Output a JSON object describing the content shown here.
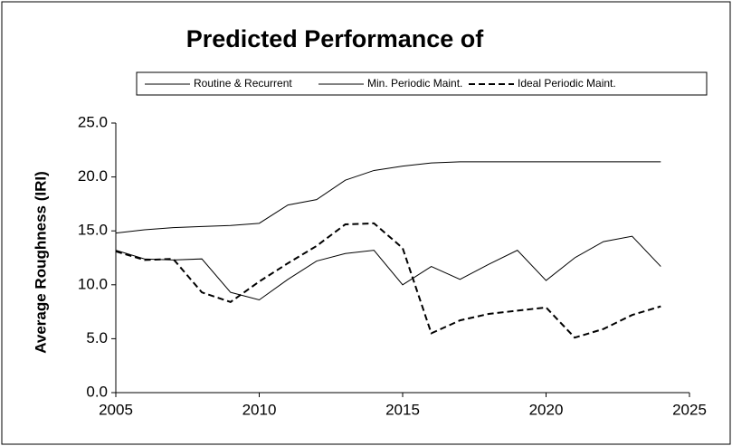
{
  "chart_data": {
    "type": "line",
    "title": "Predicted Performance of",
    "y_label": "Average Roughness (IRI)",
    "x": [
      2005,
      2006,
      2007,
      2008,
      2009,
      2010,
      2011,
      2012,
      2013,
      2014,
      2015,
      2016,
      2017,
      2018,
      2019,
      2020,
      2021,
      2022,
      2023,
      2024
    ],
    "series": [
      {
        "name": "Routine & Recurrent",
        "color": "#000000",
        "style": "solid",
        "values": [
          14.8,
          15.1,
          15.3,
          15.4,
          15.5,
          15.7,
          17.4,
          17.9,
          19.7,
          20.6,
          21.0,
          21.3,
          21.4,
          21.4,
          21.4,
          21.4,
          21.4,
          21.4,
          21.4,
          21.4
        ]
      },
      {
        "name": "Min. Periodic Maint.",
        "color": "#000000",
        "style": "solid",
        "values": [
          13.2,
          12.4,
          12.3,
          12.4,
          9.3,
          8.6,
          10.5,
          12.2,
          12.9,
          13.2,
          10.0,
          11.7,
          10.5,
          11.9,
          13.2,
          10.4,
          12.5,
          14.0,
          14.5,
          11.7
        ]
      },
      {
        "name": "Ideal Periodic Maint.",
        "color": "#000000",
        "style": "dashed",
        "values": [
          13.1,
          12.3,
          12.4,
          9.3,
          8.4,
          10.3,
          12.0,
          13.6,
          15.6,
          15.7,
          13.4,
          5.5,
          6.7,
          7.3,
          7.6,
          7.9,
          5.1,
          5.9,
          7.2,
          8.0
        ]
      }
    ],
    "xlim": [
      2005,
      2025
    ],
    "xticks": [
      2005,
      2010,
      2015,
      2020,
      2025
    ],
    "ylim": [
      0,
      25
    ],
    "yticks": [
      {
        "value": 0,
        "label": "0.0"
      },
      {
        "value": 5,
        "label": "5.0"
      },
      {
        "value": 10,
        "label": "10.0"
      },
      {
        "value": 15,
        "label": "15.0"
      },
      {
        "value": 20,
        "label": "20.0"
      },
      {
        "value": 25,
        "label": "25.0"
      }
    ],
    "grid": false,
    "legend": "top"
  }
}
